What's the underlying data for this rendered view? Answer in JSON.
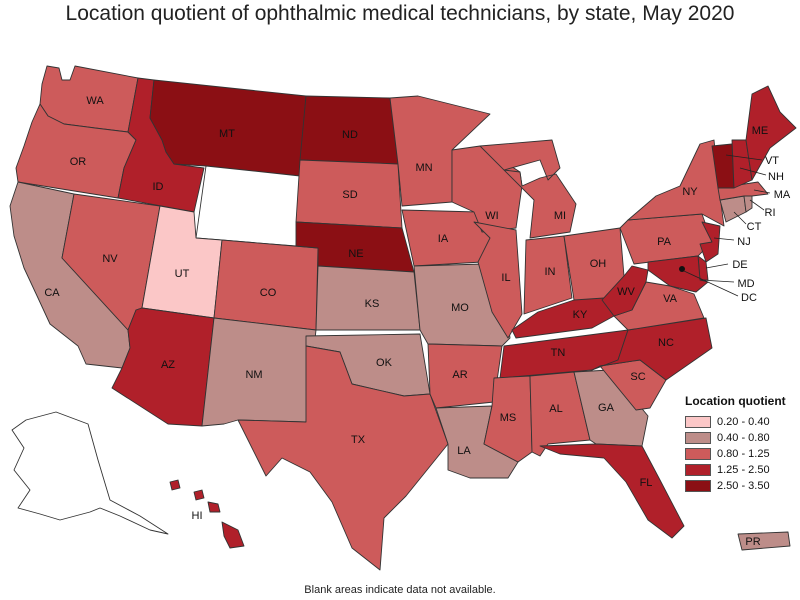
{
  "title": "Location quotient of ophthalmic medical technicians, by state, May 2020",
  "footnote": "Blank areas indicate data not available.",
  "legend": {
    "title": "Location quotient",
    "items": [
      {
        "label": "0.20 - 0.40",
        "color": "#fbc7c7"
      },
      {
        "label": "0.40 - 0.80",
        "color": "#bd8d89"
      },
      {
        "label": "0.80 - 1.25",
        "color": "#cd5b5b"
      },
      {
        "label": "1.25 - 2.50",
        "color": "#b0202a"
      },
      {
        "label": "2.50 - 3.50",
        "color": "#8b0f14"
      }
    ]
  },
  "chart_data": {
    "type": "choropleth",
    "title": "Location quotient of ophthalmic medical technicians, by state, May 2020",
    "classes": [
      "0.20 - 0.40",
      "0.40 - 0.80",
      "0.80 - 1.25",
      "1.25 - 2.50",
      "2.50 - 3.50"
    ],
    "states": {
      "WA": "0.80 - 1.25",
      "OR": "0.80 - 1.25",
      "CA": "0.40 - 0.80",
      "NV": "0.80 - 1.25",
      "ID": "1.25 - 2.50",
      "MT": "2.50 - 3.50",
      "WY": null,
      "UT": "0.20 - 0.40",
      "AZ": "1.25 - 2.50",
      "CO": "0.80 - 1.25",
      "NM": "0.40 - 0.80",
      "ND": "2.50 - 3.50",
      "SD": "0.80 - 1.25",
      "NE": "2.50 - 3.50",
      "KS": "0.40 - 0.80",
      "OK": "0.40 - 0.80",
      "TX": "0.80 - 1.25",
      "MN": "0.80 - 1.25",
      "IA": "0.80 - 1.25",
      "MO": "0.40 - 0.80",
      "AR": "0.80 - 1.25",
      "LA": "0.40 - 0.80",
      "WI": "0.80 - 1.25",
      "IL": "0.80 - 1.25",
      "MI": "0.80 - 1.25",
      "IN": "0.80 - 1.25",
      "OH": "0.80 - 1.25",
      "KY": "1.25 - 2.50",
      "TN": "1.25 - 2.50",
      "MS": "0.80 - 1.25",
      "AL": "0.80 - 1.25",
      "GA": "0.40 - 0.80",
      "FL": "1.25 - 2.50",
      "SC": "0.80 - 1.25",
      "NC": "1.25 - 2.50",
      "VA": "0.80 - 1.25",
      "WV": "1.25 - 2.50",
      "PA": "0.80 - 1.25",
      "NY": "0.80 - 1.25",
      "NJ": "1.25 - 2.50",
      "DE": "1.25 - 2.50",
      "MD": "1.25 - 2.50",
      "DC": "2.50 - 3.50",
      "CT": "0.40 - 0.80",
      "RI": "0.40 - 0.80",
      "MA": "0.80 - 1.25",
      "VT": "2.50 - 3.50",
      "NH": "1.25 - 2.50",
      "ME": "1.25 - 2.50",
      "AK": null,
      "HI": "1.25 - 2.50",
      "PR": "0.40 - 0.80"
    }
  },
  "labels": {
    "WA": "WA",
    "OR": "OR",
    "CA": "CA",
    "NV": "NV",
    "ID": "ID",
    "MT": "MT",
    "UT": "UT",
    "AZ": "AZ",
    "CO": "CO",
    "NM": "NM",
    "ND": "ND",
    "SD": "SD",
    "NE": "NE",
    "KS": "KS",
    "OK": "OK",
    "TX": "TX",
    "MN": "MN",
    "IA": "IA",
    "MO": "MO",
    "AR": "AR",
    "LA": "LA",
    "WI": "WI",
    "IL": "IL",
    "MI": "MI",
    "IN": "IN",
    "OH": "OH",
    "KY": "KY",
    "TN": "TN",
    "MS": "MS",
    "AL": "AL",
    "GA": "GA",
    "FL": "FL",
    "SC": "SC",
    "NC": "NC",
    "VA": "VA",
    "WV": "WV",
    "PA": "PA",
    "NY": "NY",
    "NJ": "NJ",
    "DE": "DE",
    "MD": "MD",
    "DC": "DC",
    "CT": "CT",
    "RI": "RI",
    "MA": "MA",
    "VT": "VT",
    "NH": "NH",
    "ME": "ME",
    "HI": "HI",
    "PR": "PR"
  }
}
